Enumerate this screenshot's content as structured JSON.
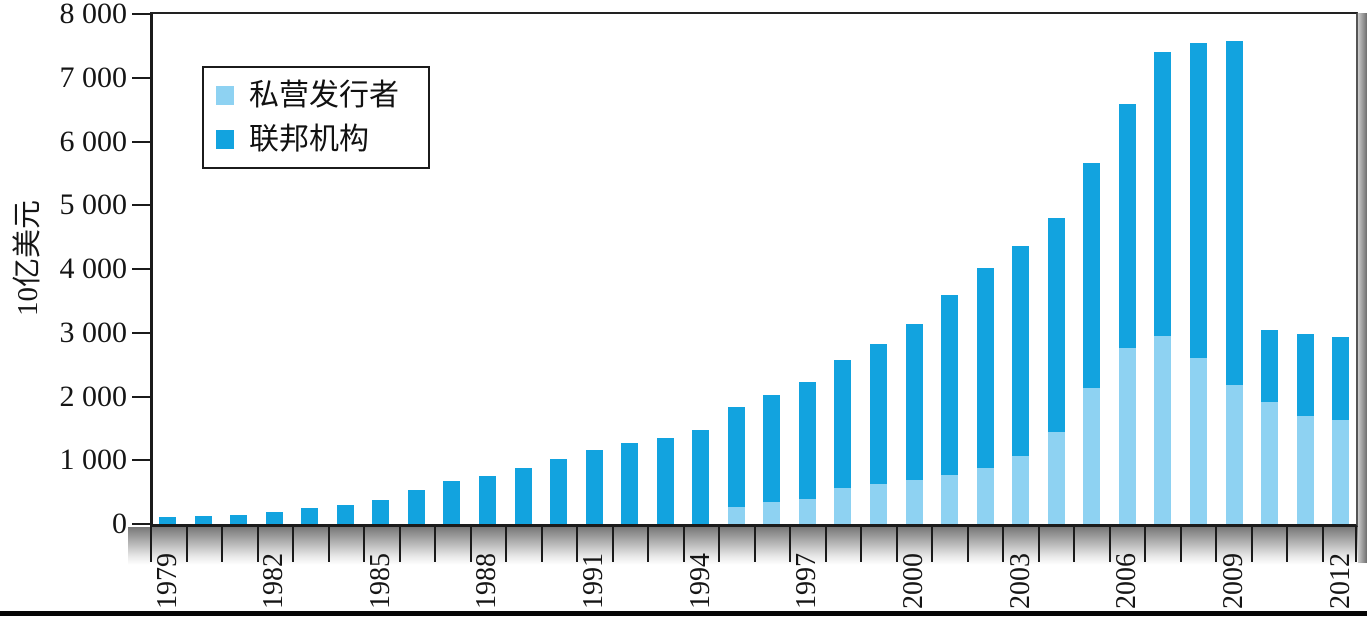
{
  "y_axis": {
    "title": "10亿美元",
    "tick_labels": [
      "8 000",
      "7 000",
      "6 000",
      "5 000",
      "4 000",
      "3 000",
      "2 000",
      "1 000",
      "0"
    ],
    "tick_values": [
      8000,
      7000,
      6000,
      5000,
      4000,
      3000,
      2000,
      1000,
      0
    ]
  },
  "x_axis": {
    "tick_labels": [
      "1979",
      "1982",
      "1985",
      "1988",
      "1991",
      "1994",
      "1997",
      "2000",
      "2003",
      "2006",
      "2009",
      "2012"
    ]
  },
  "legend": {
    "items": [
      {
        "label": "私营发行者",
        "color": "#8ED2F2"
      },
      {
        "label": "联邦机构",
        "color": "#12A3DF"
      }
    ]
  },
  "chart_data": {
    "type": "bar",
    "stacked": true,
    "ylabel": "10亿美元",
    "ylim": [
      0,
      8000
    ],
    "ytick_step": 1000,
    "grid": false,
    "legend_position": "top-left",
    "categories": [
      1979,
      1980,
      1981,
      1982,
      1983,
      1984,
      1985,
      1986,
      1987,
      1988,
      1989,
      1990,
      1991,
      1992,
      1993,
      1994,
      1995,
      1996,
      1997,
      1998,
      1999,
      2000,
      2001,
      2002,
      2003,
      2004,
      2005,
      2006,
      2007,
      2008,
      2009,
      2010,
      2011,
      2012
    ],
    "xtick_label_years": [
      1979,
      1982,
      1985,
      1988,
      1991,
      1994,
      1997,
      2000,
      2003,
      2006,
      2009,
      2012
    ],
    "series": [
      {
        "name": "私营发行者",
        "color": "#8ED2F2",
        "values": [
          0,
          0,
          0,
          0,
          0,
          0,
          0,
          0,
          0,
          0,
          0,
          0,
          0,
          0,
          0,
          0,
          270,
          340,
          390,
          560,
          625,
          690,
          770,
          875,
          1060,
          1450,
          2130,
          2755,
          2950,
          2600,
          2180,
          1910,
          1690,
          1625
        ]
      },
      {
        "name": "联邦机构",
        "color": "#12A3DF",
        "values": [
          105,
          125,
          140,
          185,
          255,
          300,
          370,
          530,
          670,
          750,
          875,
          1025,
          1160,
          1275,
          1350,
          1475,
          1570,
          1680,
          1835,
          2020,
          2205,
          2440,
          2815,
          3145,
          3300,
          3350,
          3540,
          3835,
          4460,
          4950,
          5400,
          1130,
          1285,
          1305
        ]
      }
    ],
    "totals": [
      105,
      125,
      140,
      185,
      255,
      300,
      370,
      530,
      670,
      750,
      875,
      1025,
      1160,
      1275,
      1350,
      1475,
      1840,
      2020,
      2225,
      2580,
      2830,
      3130,
      3585,
      4020,
      4360,
      4800,
      5670,
      6590,
      7410,
      7550,
      7580,
      3040,
      2975,
      2930
    ]
  }
}
